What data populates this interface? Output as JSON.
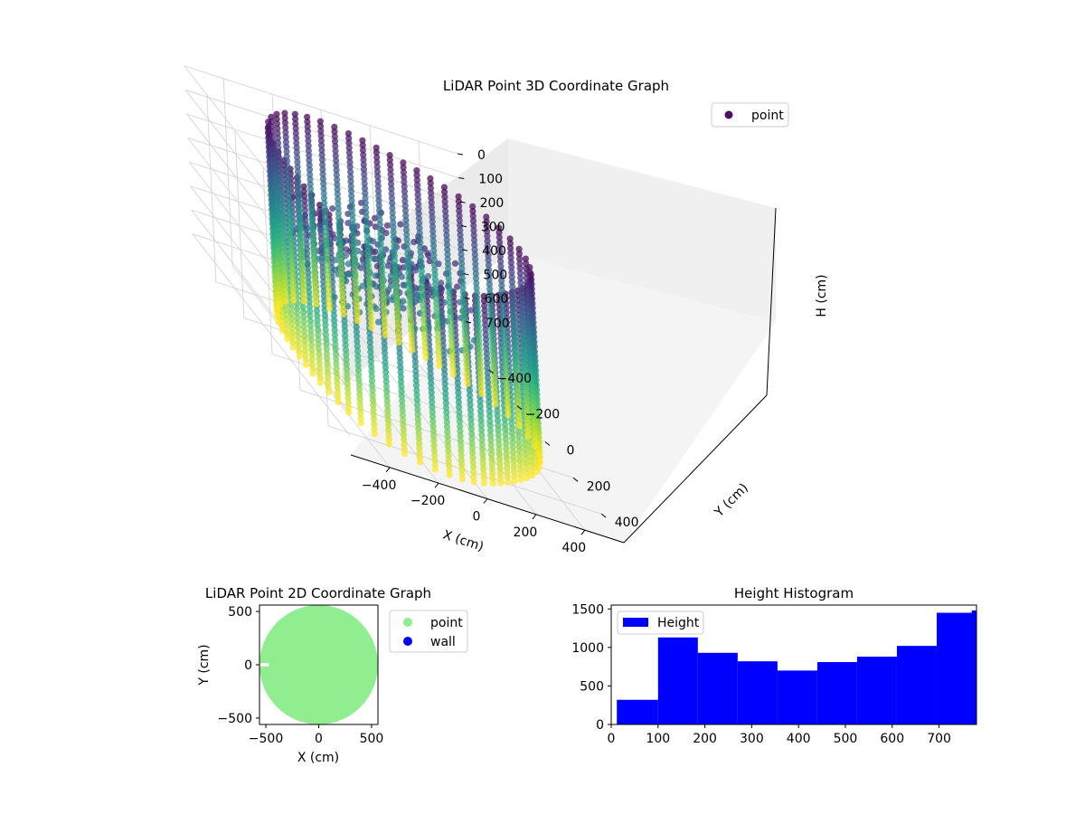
{
  "chart_data": [
    {
      "type": "scatter",
      "projection": "3d",
      "title": "LiDAR Point 3D Coordinate Graph",
      "xlabel": "X (cm)",
      "ylabel": "Y (cm)",
      "zlabel": "H (cm)",
      "xlim": [
        -560,
        560
      ],
      "ylim": [
        -560,
        560
      ],
      "zlim": [
        0,
        780
      ],
      "z_inverted": true,
      "xticks": [
        "−400",
        "−200",
        "0",
        "200",
        "400"
      ],
      "yticks": [
        "−400",
        "−200",
        "0",
        "200",
        "400"
      ],
      "zticks": [
        "0",
        "100",
        "200",
        "300",
        "400",
        "500",
        "600",
        "700"
      ],
      "colormap": "viridis",
      "legend": {
        "position": "top-right",
        "entries": [
          {
            "label": "point",
            "color": "#471164"
          }
        ]
      },
      "grid": true,
      "series": [
        {
          "name": "point",
          "shape": "cylindrical wall scan",
          "radius": 500,
          "height": [
            0,
            780
          ],
          "angular_columns": 56
        }
      ]
    },
    {
      "type": "scatter",
      "title": "LiDAR Point 2D Coordinate Graph",
      "xlabel": "X (cm)",
      "ylabel": "Y (cm)",
      "xlim": [
        -560,
        560
      ],
      "ylim": [
        -560,
        560
      ],
      "xticks": [
        "−500",
        "0",
        "500"
      ],
      "yticks": [
        "−500",
        "0",
        "500"
      ],
      "legend": {
        "position": "outside-right",
        "entries": [
          {
            "label": "point",
            "color": "#90ee90"
          },
          {
            "label": "wall",
            "color": "#0000ff"
          }
        ]
      },
      "series": [
        {
          "name": "point",
          "color": "#90ee90",
          "shape": "filled disc",
          "radius": 560
        },
        {
          "name": "wall",
          "color": "#0000ff",
          "points": []
        }
      ]
    },
    {
      "type": "bar",
      "title": "Height Histogram",
      "xlabel": "",
      "ylabel": "",
      "bin_edges": [
        0,
        100,
        185,
        270,
        355,
        440,
        525,
        610,
        695,
        780
      ],
      "values": [
        320,
        1130,
        930,
        820,
        700,
        810,
        880,
        1020,
        1450
      ],
      "overflow_bar": {
        "from": 770,
        "to": 780,
        "value": 1480
      },
      "xlim": [
        0,
        780
      ],
      "ylim": [
        0,
        1550
      ],
      "xticks": [
        "0",
        "100",
        "200",
        "300",
        "400",
        "500",
        "600",
        "700"
      ],
      "yticks": [
        "0",
        "500",
        "1000",
        "1500"
      ],
      "color": "#0000ff",
      "legend": {
        "position": "top-left",
        "entries": [
          {
            "label": "Height",
            "color": "#0000ff"
          }
        ]
      }
    }
  ]
}
